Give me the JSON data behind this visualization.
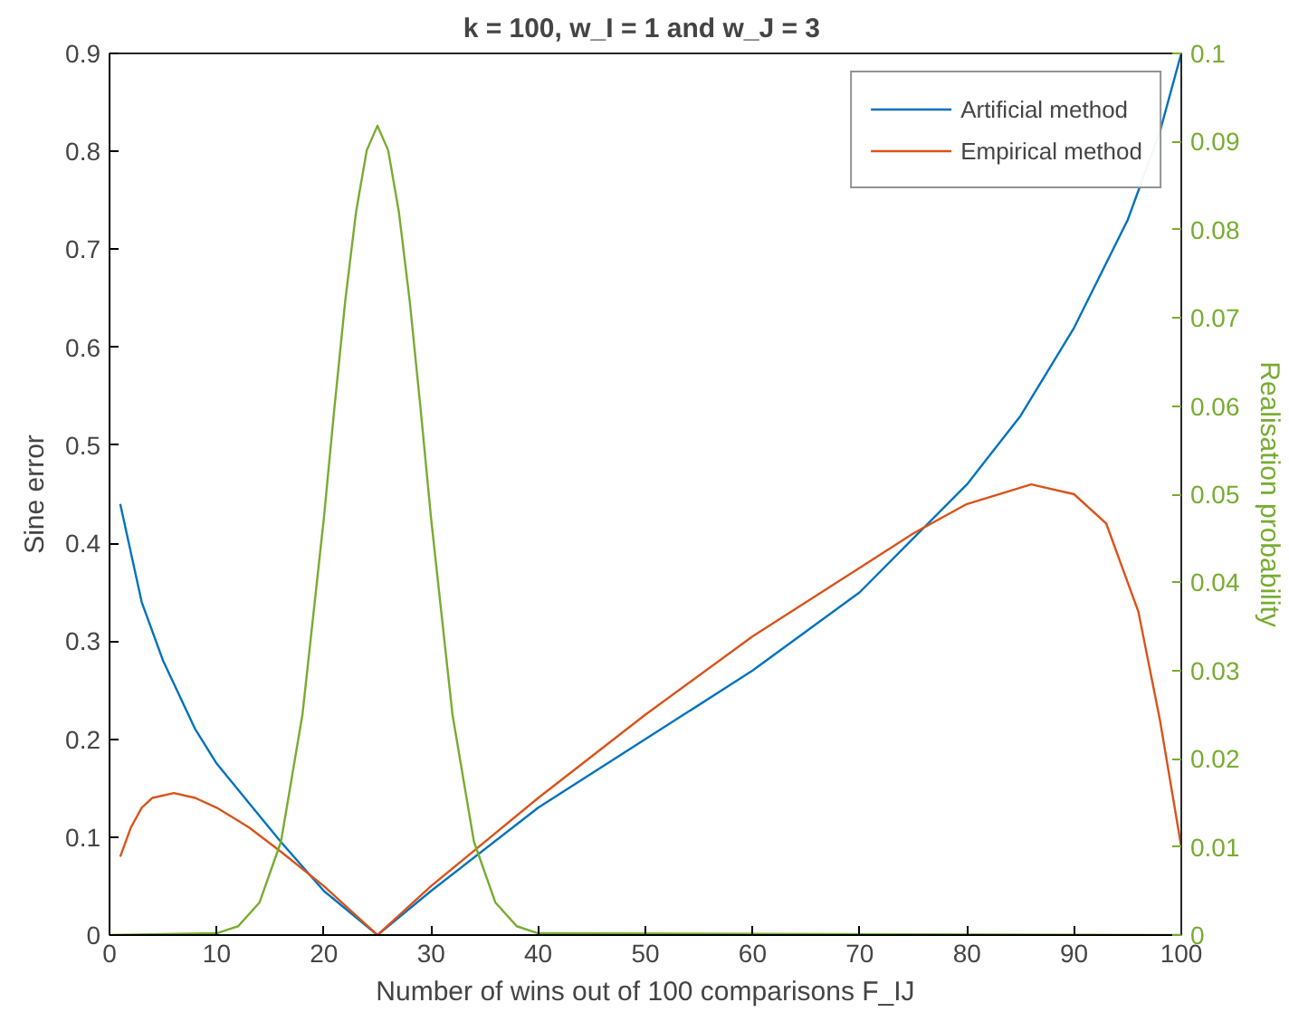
{
  "chart_data": {
    "type": "line",
    "title": "k = 100,  w_I = 1 and w_J = 3",
    "xlabel": "Number of wins out of 100 comparisons F_IJ",
    "ylabel": "Sine error",
    "y2label": "Realisation probability",
    "xlim": [
      0,
      100
    ],
    "xticks": [
      0,
      10,
      20,
      30,
      40,
      50,
      60,
      70,
      80,
      90,
      100
    ],
    "ylim": [
      0,
      0.9
    ],
    "yticks": [
      0,
      0.1,
      0.2,
      0.3,
      0.4,
      0.5,
      0.6,
      0.7,
      0.8,
      0.9
    ],
    "y2lim": [
      0,
      0.1
    ],
    "y2ticks": [
      0,
      0.01,
      0.02,
      0.03,
      0.04,
      0.05,
      0.06,
      0.07,
      0.08,
      0.09,
      0.1
    ],
    "grid": false,
    "legend": "top right",
    "line_style": "solid",
    "series": [
      {
        "name": "Artificial method",
        "color": "#0072bd",
        "x": [
          1,
          3,
          5,
          8,
          10,
          13,
          16,
          20,
          25,
          30,
          40,
          50,
          60,
          70,
          75,
          80,
          85,
          90,
          95,
          98,
          100
        ],
        "values": [
          0.44,
          0.34,
          0.28,
          0.21,
          0.175,
          0.135,
          0.095,
          0.045,
          0,
          0.045,
          0.13,
          0.2,
          0.27,
          0.35,
          0.405,
          0.46,
          0.53,
          0.62,
          0.73,
          0.82,
          0.9
        ]
      },
      {
        "name": "Empirical method",
        "color": "#d95319",
        "x": [
          1,
          2,
          3,
          4,
          6,
          8,
          10,
          13,
          16,
          20,
          25,
          30,
          40,
          50,
          60,
          70,
          75,
          80,
          86,
          90,
          93,
          96,
          98,
          100
        ],
        "values": [
          0.08,
          0.11,
          0.13,
          0.14,
          0.145,
          0.14,
          0.13,
          0.11,
          0.085,
          0.05,
          0,
          0.05,
          0.14,
          0.225,
          0.305,
          0.375,
          0.41,
          0.44,
          0.46,
          0.45,
          0.42,
          0.33,
          0.22,
          0.09
        ]
      },
      {
        "color": "#77ac30",
        "axis": "y2",
        "x": [
          0,
          10,
          12,
          14,
          16,
          18,
          20,
          21,
          22,
          23,
          24,
          25,
          26,
          27,
          28,
          29,
          30,
          32,
          34,
          36,
          38,
          40,
          100
        ],
        "values": [
          0,
          0.0002,
          0.001,
          0.0037,
          0.0106,
          0.025,
          0.0473,
          0.06,
          0.072,
          0.082,
          0.089,
          0.0918,
          0.089,
          0.082,
          0.072,
          0.06,
          0.0473,
          0.025,
          0.0106,
          0.0037,
          0.001,
          0.0002,
          0
        ]
      }
    ]
  }
}
